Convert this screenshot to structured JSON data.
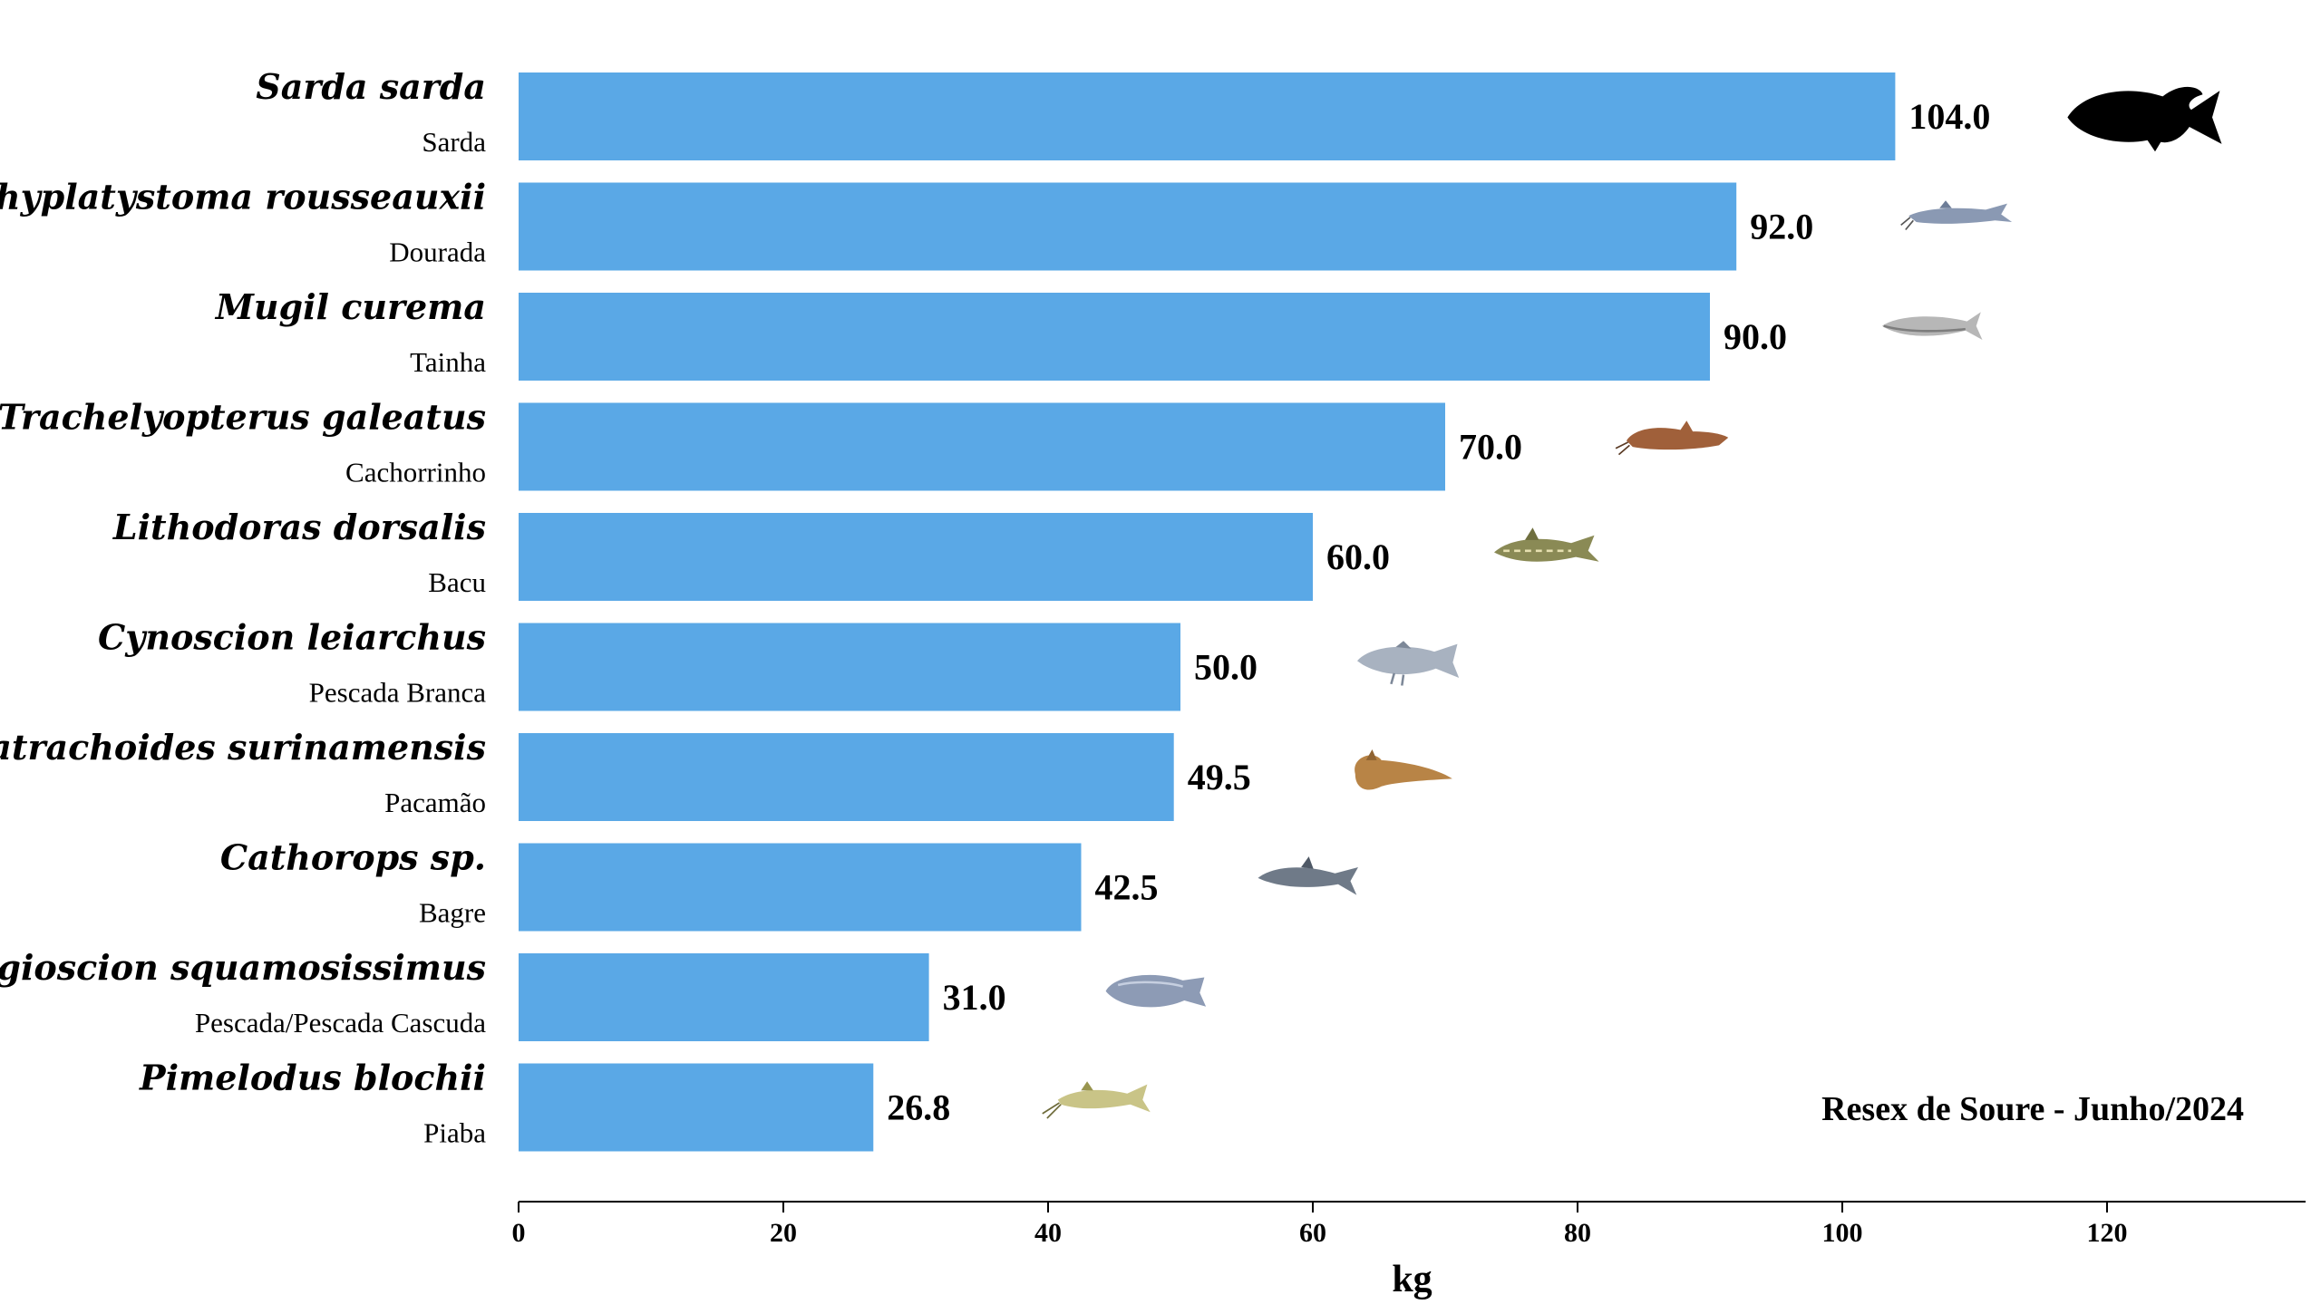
{
  "chart_data": {
    "type": "bar",
    "orientation": "horizontal",
    "categories": [
      "Sarda sarda",
      "Brachyplatystoma rousseauxii",
      "Mugil curema",
      "Trachelyopterus galeatus",
      "Lithodoras dorsalis",
      "Cynoscion leiarchus",
      "Batrachoides surinamensis",
      "Cathorops sp.",
      "Plagioscion squamosissimus",
      "Pimelodus blochii"
    ],
    "common_names": [
      "Sarda",
      "Dourada",
      "Tainha",
      "Cachorrinho",
      "Bacu",
      "Pescada Branca",
      "Pacamão",
      "Bagre",
      "Pescada/Pescada Cascuda",
      "Piaba"
    ],
    "values": [
      104.0,
      92.0,
      90.0,
      70.0,
      60.0,
      50.0,
      49.5,
      42.5,
      31.0,
      26.8
    ],
    "value_labels": [
      "104.0",
      "92.0",
      "90.0",
      "70.0",
      "60.0",
      "50.0",
      "49.5",
      "42.5",
      "31.0",
      "26.8"
    ],
    "icons": [
      "silhouette-fish-icon",
      "catfish-icon",
      "mullet-icon",
      "driftwood-catfish-icon",
      "thorny-catfish-icon",
      "weakfish-icon",
      "toadfish-icon",
      "sea-catfish-icon",
      "croaker-icon",
      "long-whisker-catfish-icon"
    ],
    "xlabel": "kg",
    "xlim": [
      0,
      135
    ],
    "xticks": [
      0,
      20,
      40,
      60,
      80,
      100,
      120
    ],
    "grid": false,
    "annotation": "Resex de Soure - Junho/2024",
    "colors": {
      "bar": "#5aa8e6",
      "text": "#000000"
    }
  }
}
